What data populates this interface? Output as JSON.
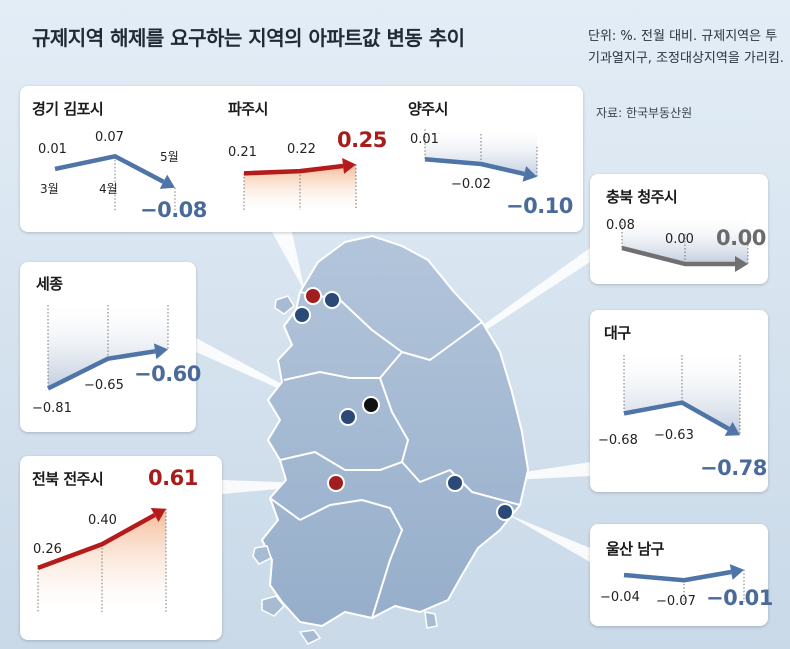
{
  "title": "규제지역 해제를 요구하는 지역의 아파트값 변동 추이",
  "note": "단위: %. 전월 대비. 규제지역은 투기과열지구, 조정대상지역을 가리킴.",
  "source": "자료: 한국부동산원",
  "colors": {
    "down": "#4f74a8",
    "up": "#b41c1c",
    "flat": "#707070",
    "map_fill": "#a7bbd3",
    "map_border": "#ffffff"
  },
  "chart_data": [
    {
      "type": "line",
      "title": "경기 김포시",
      "categories": [
        "3월",
        "4월",
        "5월"
      ],
      "values": [
        0.01,
        0.07,
        -0.08
      ],
      "labels": [
        "0.01",
        "0.07",
        "−0.08"
      ]
    },
    {
      "type": "line",
      "title": "파주시",
      "values": [
        0.21,
        0.22,
        0.25
      ],
      "labels": [
        "0.21",
        "0.22",
        "0.25"
      ]
    },
    {
      "type": "line",
      "title": "양주시",
      "values": [
        0.01,
        -0.02,
        -0.1
      ],
      "labels": [
        "0.01",
        "−0.02",
        "−0.10"
      ]
    },
    {
      "type": "line",
      "title": "충북 청주시",
      "values": [
        0.08,
        0.0,
        0.0
      ],
      "labels": [
        "0.08",
        "0.00",
        "0.00"
      ]
    },
    {
      "type": "line",
      "title": "세종",
      "values": [
        -0.81,
        -0.65,
        -0.6
      ],
      "labels": [
        "−0.81",
        "−0.65",
        "−0.60"
      ]
    },
    {
      "type": "line",
      "title": "대구",
      "values": [
        -0.68,
        -0.63,
        -0.78
      ],
      "labels": [
        "−0.68",
        "−0.63",
        "−0.78"
      ]
    },
    {
      "type": "line",
      "title": "전북 전주시",
      "values": [
        0.26,
        0.4,
        0.61
      ],
      "labels": [
        "0.26",
        "0.40",
        "0.61"
      ]
    },
    {
      "type": "line",
      "title": "울산 남구",
      "values": [
        -0.04,
        -0.07,
        -0.01
      ],
      "labels": [
        "−0.04",
        "−0.07",
        "−0.01"
      ]
    }
  ]
}
